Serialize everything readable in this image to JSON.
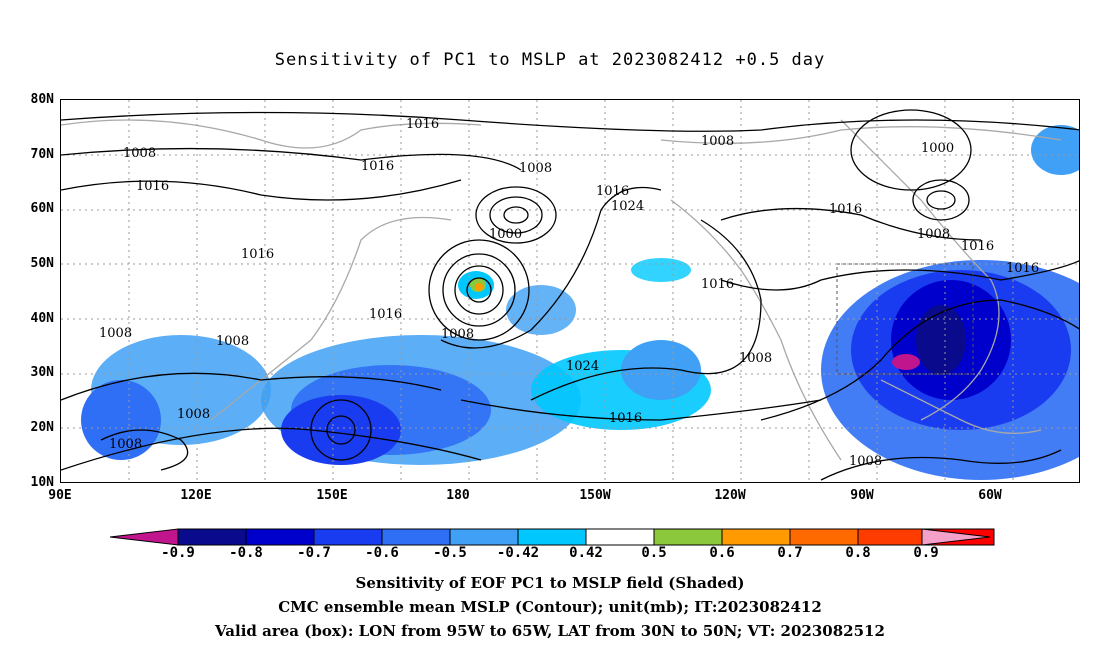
{
  "title": "Sensitivity of PC1 to MSLP at 2023082412 +0.5 day",
  "lat_labels": [
    "80N",
    "70N",
    "60N",
    "50N",
    "40N",
    "30N",
    "20N",
    "10N"
  ],
  "lon_labels": [
    "90E",
    "120E",
    "150E",
    "180",
    "150W",
    "120W",
    "90W",
    "60W"
  ],
  "contour_labels": [
    "1016",
    "1008",
    "1008",
    "1016",
    "1016",
    "1008",
    "1000",
    "1016",
    "1024",
    "1016",
    "1000",
    "1008",
    "1016",
    "1016",
    "1016",
    "1016",
    "1008",
    "1008",
    "1008",
    "1016",
    "1024",
    "1008",
    "1008",
    "1008",
    "1016",
    "1008"
  ],
  "colorbar": {
    "tick_labels": [
      "-0.9",
      "-0.8",
      "-0.7",
      "-0.6",
      "-0.5",
      "-0.42",
      "0.42",
      "0.5",
      "0.6",
      "0.7",
      "0.8",
      "0.9"
    ],
    "colors": [
      "#c0158c",
      "#0a0a8c",
      "#0000cd",
      "#1a3cf0",
      "#2f6ff5",
      "#3fa0f5",
      "#00c8ff",
      "#ffffff",
      "#8cc83c",
      "#ff9b00",
      "#ff6a00",
      "#ff3c00",
      "#ff0000",
      "#f5a0c8"
    ]
  },
  "captions": [
    "Sensitivity of EOF PC1 to MSLP field (Shaded)",
    "CMC ensemble mean MSLP (Contour); unit(mb); IT:2023082412",
    "Valid area (box): LON from 95W to 65W, LAT from 30N to 50N; VT: 2023082512"
  ]
}
